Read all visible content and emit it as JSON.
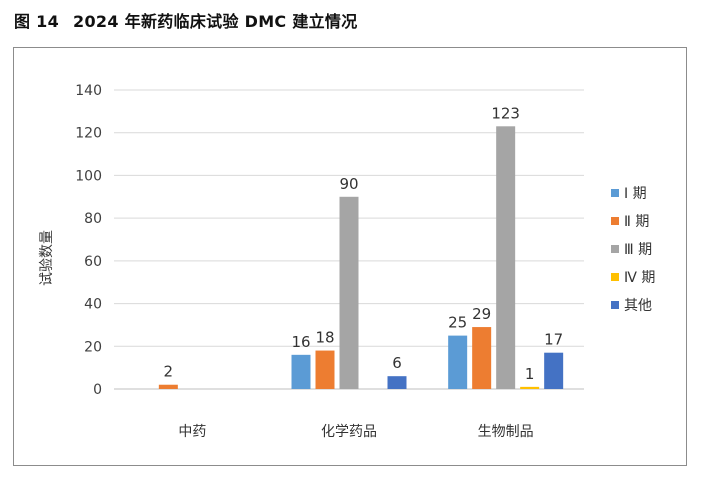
{
  "figure": {
    "number": "图 14",
    "caption": "2024 年新药临床试验 DMC 建立情况"
  },
  "chart_data": {
    "type": "bar",
    "title": "",
    "xlabel": "",
    "ylabel": "试验数量",
    "ylim": [
      0,
      140
    ],
    "yticks": [
      0,
      20,
      40,
      60,
      80,
      100,
      120,
      140
    ],
    "grid": true,
    "legend_position": "right",
    "categories": [
      "中药",
      "化学药品",
      "生物制品"
    ],
    "series": [
      {
        "name": "Ⅰ 期",
        "color": "#5b9bd5",
        "values": [
          null,
          16,
          25
        ]
      },
      {
        "name": "Ⅱ 期",
        "color": "#ed7d31",
        "values": [
          2,
          18,
          29
        ]
      },
      {
        "name": "Ⅲ 期",
        "color": "#a5a5a5",
        "values": [
          null,
          90,
          123
        ]
      },
      {
        "name": "Ⅳ 期",
        "color": "#ffc000",
        "values": [
          null,
          null,
          1
        ]
      },
      {
        "name": "其他",
        "color": "#4472c4",
        "values": [
          null,
          6,
          17
        ]
      }
    ]
  }
}
